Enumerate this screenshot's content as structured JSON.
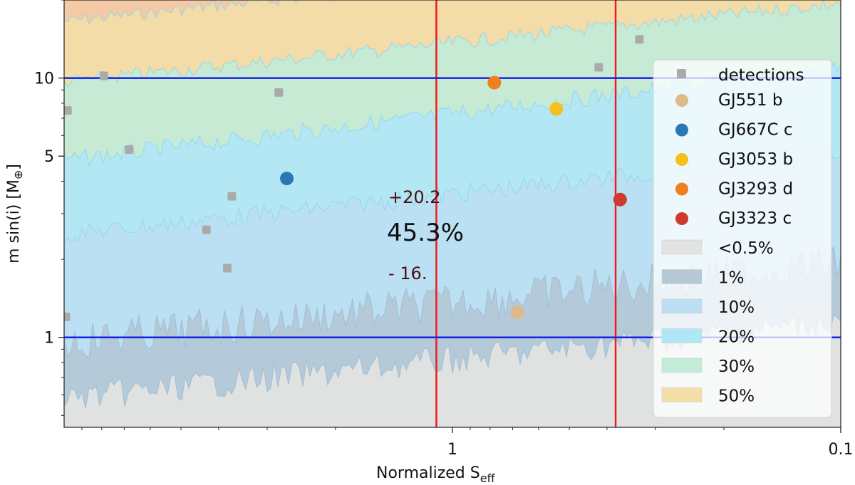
{
  "chart_data": {
    "type": "scatter",
    "title": "",
    "xlabel": "Normalized S",
    "xlabel_sub": "eff",
    "ylabel": "m sin(i) [M",
    "ylabel_symbol": "⊕",
    "ylabel_close": "]",
    "xscale": "log",
    "yscale": "log",
    "xlim": [
      10,
      0.1
    ],
    "ylim": [
      0.45,
      20
    ],
    "x_ticks": [
      {
        "value": 1,
        "label": "1"
      },
      {
        "value": 0.1,
        "label": "0.1"
      }
    ],
    "y_ticks": [
      {
        "value": 1,
        "label": "1"
      },
      {
        "value": 5,
        "label": "5"
      },
      {
        "value": 10,
        "label": "10"
      }
    ],
    "vertical_lines": [
      1.1,
      0.38
    ],
    "horizontal_lines": [
      1,
      10
    ],
    "detections": [
      {
        "x": 9.8,
        "y": 7.5
      },
      {
        "x": 7.9,
        "y": 10.2
      },
      {
        "x": 6.8,
        "y": 5.3
      },
      {
        "x": 9.9,
        "y": 1.2
      },
      {
        "x": 4.3,
        "y": 2.6
      },
      {
        "x": 3.8,
        "y": 1.85
      },
      {
        "x": 3.7,
        "y": 3.5
      },
      {
        "x": 2.8,
        "y": 8.8
      },
      {
        "x": 0.42,
        "y": 11
      },
      {
        "x": 0.33,
        "y": 14.1
      }
    ],
    "planets": [
      {
        "name": "GJ551 b",
        "x": 0.68,
        "y": 1.25,
        "color": "#dfb98a"
      },
      {
        "name": "GJ667C c",
        "x": 2.67,
        "y": 4.1,
        "color": "#2a77b4"
      },
      {
        "name": "GJ3053 b",
        "x": 0.54,
        "y": 7.6,
        "color": "#f4c11b"
      },
      {
        "name": "GJ3293 d",
        "x": 0.78,
        "y": 9.6,
        "color": "#ef7f1f"
      },
      {
        "name": "GJ3323 c",
        "x": 0.37,
        "y": 3.4,
        "color": "#cf3a2c"
      }
    ],
    "contours": [
      {
        "label": "<0.5%",
        "color": "#e3e3e3"
      },
      {
        "label": "1%",
        "color": "#b4c8d6"
      },
      {
        "label": "10%",
        "color": "#bcdff3"
      },
      {
        "label": "20%",
        "color": "#b0e7f7"
      },
      {
        "label": "30%",
        "color": "#c2ebd8"
      },
      {
        "label": "50%",
        "color": "#f4dea8"
      }
    ],
    "legend": {
      "detections_label": "detections",
      "position": "right"
    },
    "annotation": {
      "upper": "+20.2",
      "value": "45.3%",
      "lower": "- 16."
    },
    "colors": {
      "guide_vertical": "#ee1c1c",
      "guide_horizontal": "#1520e6",
      "detection": "#aaaaaa"
    }
  }
}
